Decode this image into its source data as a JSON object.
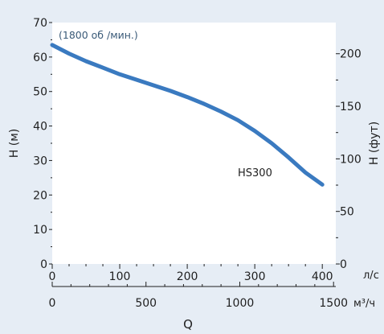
{
  "chart_data": {
    "type": "line",
    "annotation": "(1800 об /мин.)",
    "background": "#e6edf5",
    "plot_background": "#ffffff",
    "line_color": "#3a7ac0",
    "x_axis_primary": {
      "unit": "л/с",
      "range": [
        0,
        420
      ],
      "ticks": [
        0,
        100,
        200,
        300,
        400
      ]
    },
    "x_axis_secondary": {
      "unit": "м³/ч",
      "ticks": [
        0,
        500,
        1000,
        1500
      ],
      "conversion_factor": 3.6
    },
    "x_label": "Q",
    "y_axis_left": {
      "label": "H (м)",
      "range": [
        0,
        70
      ],
      "ticks": [
        0,
        10,
        20,
        30,
        40,
        50,
        60,
        70
      ]
    },
    "y_axis_right": {
      "label": "H (фут)",
      "ticks": [
        0,
        50,
        100,
        150,
        200
      ],
      "conversion_factor": 3.2808
    },
    "series": [
      {
        "name": "HS300",
        "x": [
          0,
          25,
          50,
          75,
          100,
          125,
          150,
          175,
          200,
          225,
          250,
          275,
          300,
          325,
          350,
          375,
          400
        ],
        "y": [
          63.5,
          61.0,
          58.8,
          56.9,
          55.0,
          53.4,
          51.8,
          50.2,
          48.4,
          46.4,
          44.2,
          41.7,
          38.6,
          35.0,
          30.9,
          26.5,
          23.0
        ]
      }
    ]
  }
}
